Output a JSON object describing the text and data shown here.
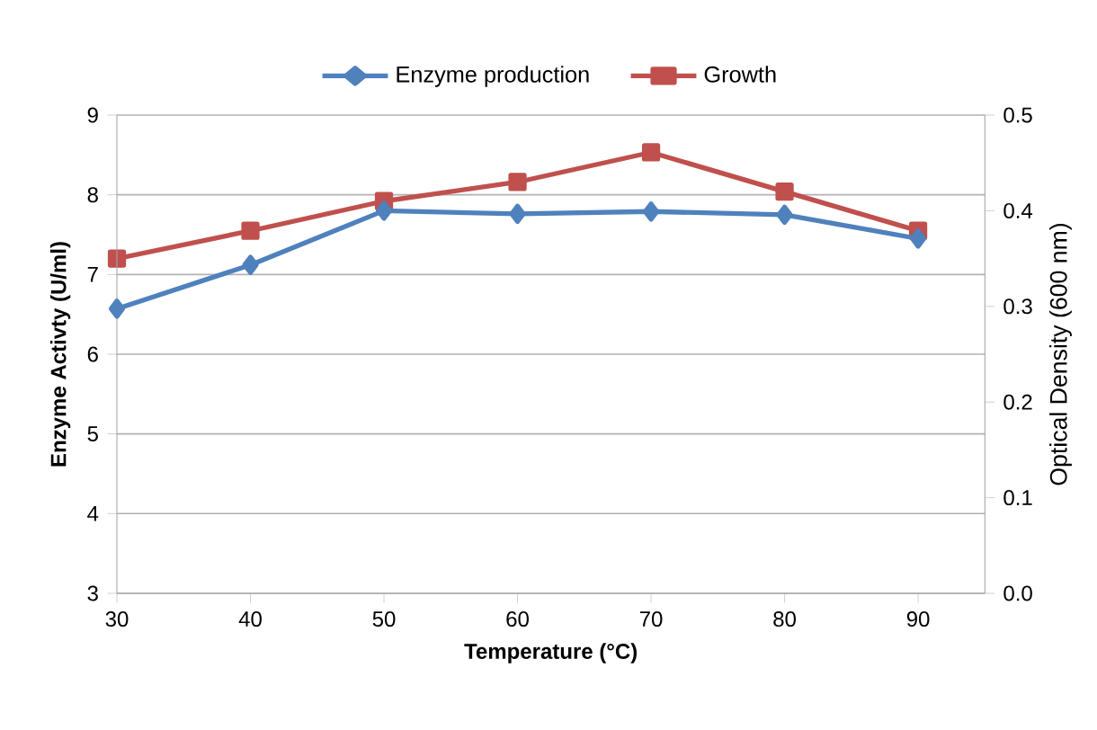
{
  "chart_data": {
    "type": "line",
    "xlabel": "Temperature (°C)",
    "ylabel": "Enzyme Activty (U/ml)",
    "y2label": "Optical Density  (600 nm)",
    "x": [
      30,
      40,
      50,
      60,
      70,
      80,
      90
    ],
    "series": [
      {
        "name": "Enzyme production",
        "color": "#4f81bd",
        "marker": "diamond",
        "values": [
          6.57,
          7.12,
          7.8,
          7.76,
          7.79,
          7.75,
          7.45
        ]
      },
      {
        "name": "Growth",
        "color": "#c0504d",
        "marker": "square",
        "axis": "y2",
        "values": [
          0.35,
          0.379,
          0.41,
          0.43,
          0.461,
          0.42,
          0.379
        ]
      }
    ],
    "xlim": [
      30,
      95
    ],
    "xticks": [
      30,
      40,
      50,
      60,
      70,
      80,
      90
    ],
    "ylim": [
      3,
      9
    ],
    "yticks": [
      3,
      4,
      5,
      6,
      7,
      8,
      9
    ],
    "y2lim": [
      0,
      0.5
    ],
    "y2ticks": [
      {
        "value": 0,
        "label": "0.0"
      },
      0.1,
      0.2,
      0.3,
      0.4,
      0.5
    ],
    "grid": "y",
    "legend": "top"
  }
}
